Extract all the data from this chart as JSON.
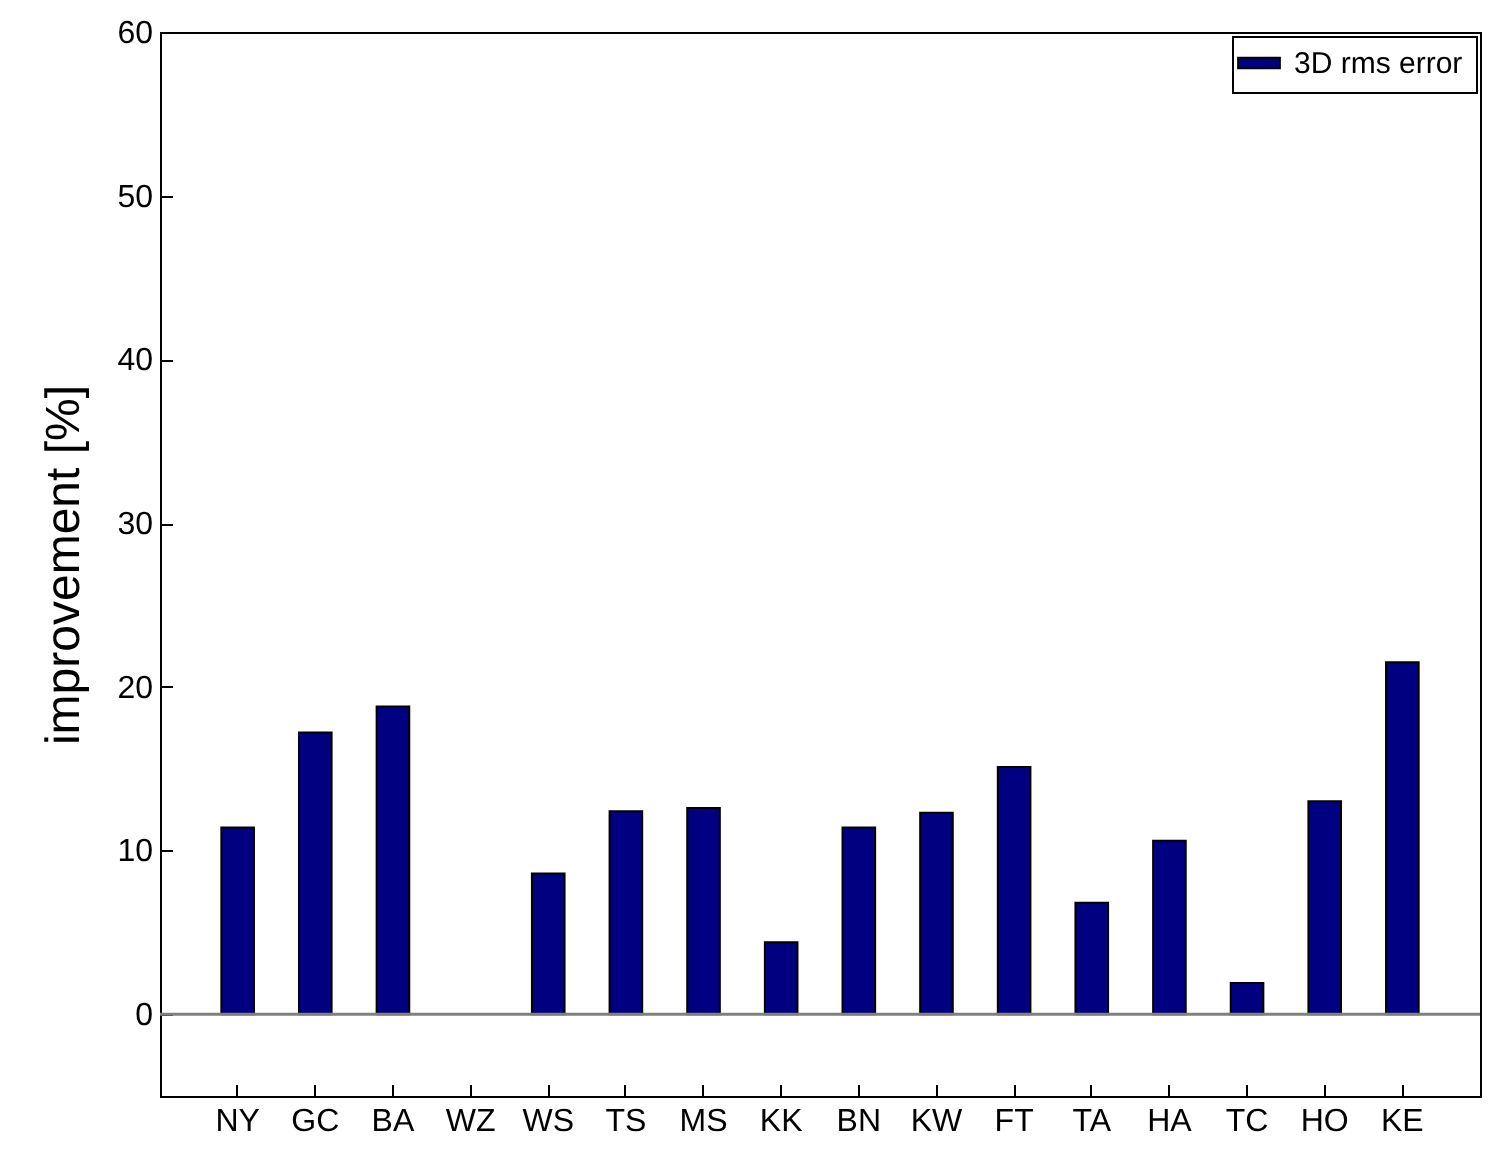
{
  "chart_data": {
    "type": "bar",
    "ylabel": "improvement [%]",
    "categories": [
      "NY",
      "GC",
      "BA",
      "WZ",
      "WS",
      "TS",
      "MS",
      "KK",
      "BN",
      "KW",
      "FT",
      "TA",
      "HA",
      "TC",
      "HO",
      "KE"
    ],
    "series": [
      {
        "name": "3D rms error",
        "color": "#000080",
        "values": [
          11.4,
          17.2,
          18.8,
          null,
          8.6,
          12.4,
          12.6,
          4.4,
          11.4,
          12.3,
          15.1,
          6.8,
          10.6,
          1.9,
          13.0,
          21.5
        ]
      }
    ],
    "ylim": [
      -5,
      60
    ],
    "yticks": [
      0,
      10,
      20,
      30,
      40,
      50,
      60
    ],
    "ref_lines": [
      {
        "axis": "y",
        "value": 0,
        "color": "#808080"
      }
    ],
    "legend": "top right",
    "grid": false
  }
}
